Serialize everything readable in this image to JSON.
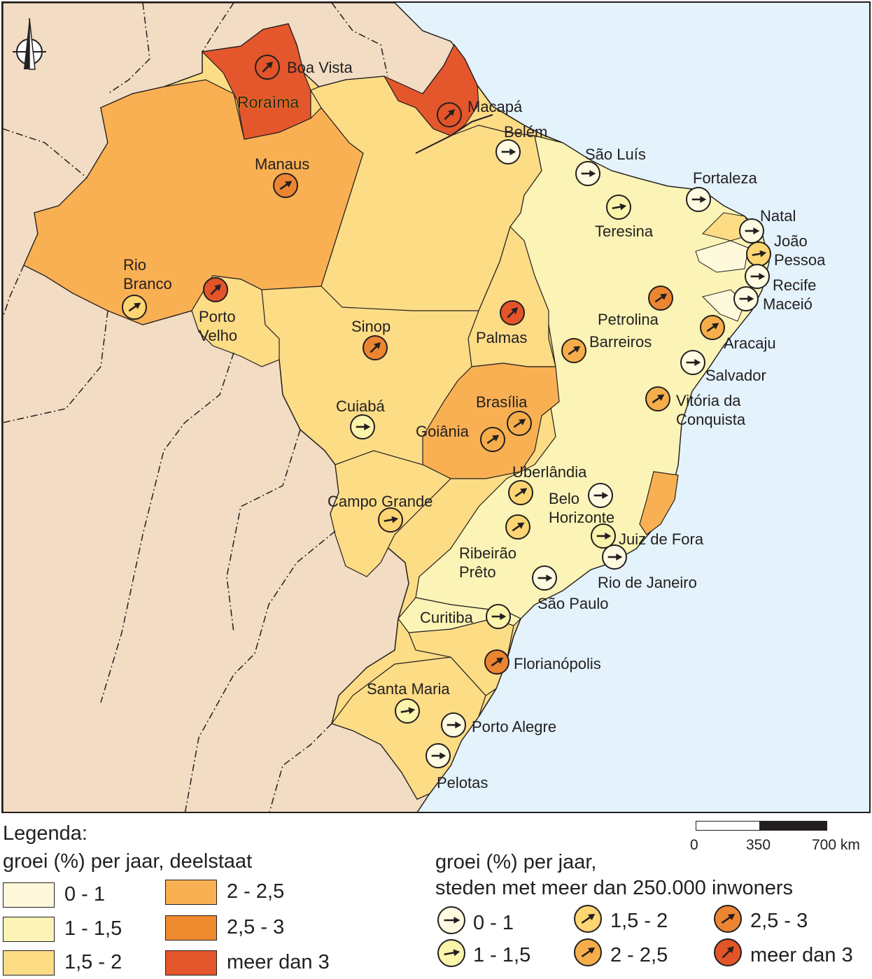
{
  "map": {
    "state_labels": [
      {
        "id": "roraima",
        "text": "Roraìma"
      }
    ],
    "cities": [
      {
        "name": "Boa Vista",
        "lines": [
          "Boa Vista"
        ],
        "growth_class": "meer dan 3",
        "dir_deg": -45
      },
      {
        "name": "Macapá",
        "lines": [
          "Macapá"
        ],
        "growth_class": "meer dan 3",
        "dir_deg": -45
      },
      {
        "name": "Belém",
        "lines": [
          "Belém"
        ],
        "growth_class": "0 - 1",
        "dir_deg": 0
      },
      {
        "name": "São Luís",
        "lines": [
          "São Luís"
        ],
        "growth_class": "0 - 1",
        "dir_deg": 0
      },
      {
        "name": "Fortaleza",
        "lines": [
          "Fortaleza"
        ],
        "growth_class": "0 - 1",
        "dir_deg": 0
      },
      {
        "name": "Teresina",
        "lines": [
          "Teresina"
        ],
        "growth_class": "1 - 1,5",
        "dir_deg": -10
      },
      {
        "name": "Natal",
        "lines": [
          "Natal"
        ],
        "growth_class": "0 - 1",
        "dir_deg": 0
      },
      {
        "name": "João Pessoa",
        "lines": [
          "João",
          "Pessoa"
        ],
        "growth_class": "1,5 - 2",
        "dir_deg": -10
      },
      {
        "name": "Recife",
        "lines": [
          "Recife"
        ],
        "growth_class": "0 - 1",
        "dir_deg": 0
      },
      {
        "name": "Maceió",
        "lines": [
          "Maceió"
        ],
        "growth_class": "0 - 1",
        "dir_deg": 0
      },
      {
        "name": "Aracaju",
        "lines": [
          "Aracaju"
        ],
        "growth_class": "2 - 2,5",
        "dir_deg": -35
      },
      {
        "name": "Salvador",
        "lines": [
          "Salvador"
        ],
        "growth_class": "0 - 1",
        "dir_deg": 0
      },
      {
        "name": "Petrolina",
        "lines": [
          "Petrolina"
        ],
        "growth_class": "2,5 - 3",
        "dir_deg": -35
      },
      {
        "name": "Barreiros",
        "lines": [
          "Barreiros"
        ],
        "growth_class": "2 - 2,5",
        "dir_deg": -35
      },
      {
        "name": "Vitória da Conquista",
        "lines": [
          "Vitória da",
          "Conquista"
        ],
        "growth_class": "2 - 2,5",
        "dir_deg": -35
      },
      {
        "name": "Manaus",
        "lines": [
          "Manaus"
        ],
        "growth_class": "2,5 - 3",
        "dir_deg": -35
      },
      {
        "name": "Rio Branco",
        "lines": [
          "Rio",
          "Branco"
        ],
        "growth_class": "1,5 - 2",
        "dir_deg": -35
      },
      {
        "name": "Porto Velho",
        "lines": [
          "Porto",
          "Velho"
        ],
        "growth_class": "meer dan 3",
        "dir_deg": -45
      },
      {
        "name": "Sinop",
        "lines": [
          "Sinop"
        ],
        "growth_class": "2,5 - 3",
        "dir_deg": -45
      },
      {
        "name": "Palmas",
        "lines": [
          "Palmas"
        ],
        "growth_class": "meer dan 3",
        "dir_deg": -45
      },
      {
        "name": "Cuiabá",
        "lines": [
          "Cuiabá"
        ],
        "growth_class": "1 - 1,5",
        "dir_deg": 0
      },
      {
        "name": "Brasília",
        "lines": [
          "Brasília"
        ],
        "growth_class": "2 - 2,5",
        "dir_deg": -35
      },
      {
        "name": "Goiânia",
        "lines": [
          "Goiânia"
        ],
        "growth_class": "2 - 2,5",
        "dir_deg": -35
      },
      {
        "name": "Uberlândia",
        "lines": [
          "Uberlândia"
        ],
        "growth_class": "1,5 - 2",
        "dir_deg": -35
      },
      {
        "name": "Belo Horizonte",
        "lines": [
          "Belo",
          "Horizonte"
        ],
        "growth_class": "0 - 1",
        "dir_deg": 0
      },
      {
        "name": "Campo Grande",
        "lines": [
          "Campo Grande"
        ],
        "growth_class": "1,5 - 2",
        "dir_deg": -10
      },
      {
        "name": "Ribeirão Prêto",
        "lines": [
          "Ribeirão",
          "Prêto"
        ],
        "growth_class": "1,5 - 2",
        "dir_deg": -35
      },
      {
        "name": "Juiz de Fora",
        "lines": [
          "Juiz de Fora"
        ],
        "growth_class": "1 - 1,5",
        "dir_deg": 0
      },
      {
        "name": "Rio de Janeiro",
        "lines": [
          "Rio de Janeiro"
        ],
        "growth_class": "0 - 1",
        "dir_deg": 0
      },
      {
        "name": "São Paulo",
        "lines": [
          "São Paulo"
        ],
        "growth_class": "0 - 1",
        "dir_deg": 0
      },
      {
        "name": "Curitiba",
        "lines": [
          "Curitiba"
        ],
        "growth_class": "1 - 1,5",
        "dir_deg": 0
      },
      {
        "name": "Florianópolis",
        "lines": [
          "Florianópolis"
        ],
        "growth_class": "2,5 - 3",
        "dir_deg": -35
      },
      {
        "name": "Santa Maria",
        "lines": [
          "Santa Maria"
        ],
        "growth_class": "1 - 1,5",
        "dir_deg": -10
      },
      {
        "name": "Porto Alegre",
        "lines": [
          "Porto Alegre"
        ],
        "growth_class": "0 - 1",
        "dir_deg": 0
      },
      {
        "name": "Pelotas",
        "lines": [
          "Pelotas"
        ],
        "growth_class": "0 - 1",
        "dir_deg": 0
      }
    ]
  },
  "colors": {
    "ocean": "#e3f2fb",
    "foreign_land": "#f2dcc3",
    "class_0_1": "#fef9da",
    "class_1_1_5": "#fbf4b6",
    "class_1_5_2": "#fddc86",
    "class_2_2_5": "#f9b053",
    "class_2_5_3": "#ef8a2f",
    "class_3_plus": "#e4572c",
    "city_0_1": "#fffbe2",
    "city_1_1_5": "#fbf4ab",
    "city_1_5_2": "#fdd572",
    "city_2_2_5": "#f6ae4a",
    "city_2_5_3": "#ec8532",
    "city_3_plus": "#e35429"
  },
  "legend": {
    "title": "Legenda:",
    "states_heading": "groei (%) per jaar, deelstaat",
    "state_classes": [
      "0 - 1",
      "1 - 1,5",
      "1,5 - 2",
      "2 - 2,5",
      "2,5 - 3",
      "meer dan 3"
    ],
    "cities_heading_1": "groei (%) per jaar,",
    "cities_heading_2": "steden met meer dan 250.000 inwoners",
    "city_classes": [
      "0 - 1",
      "1 - 1,5",
      "1,5 - 2",
      "2 - 2,5",
      "2,5 - 3",
      "meer dan 3"
    ]
  },
  "scale_bar": {
    "ticks": [
      "0",
      "350",
      "700 km"
    ]
  }
}
